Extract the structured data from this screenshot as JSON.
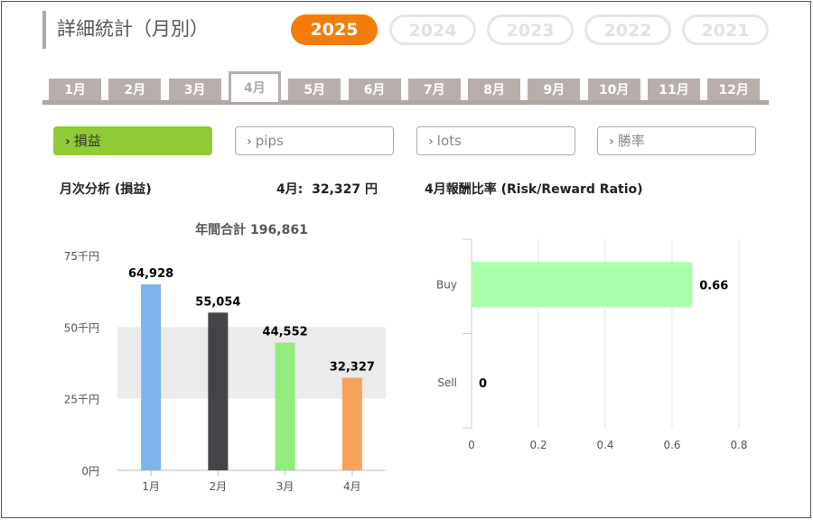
{
  "header": {
    "title": "詳細統計（月別）"
  },
  "years": [
    {
      "label": "2025",
      "active": true
    },
    {
      "label": "2024",
      "active": false
    },
    {
      "label": "2023",
      "active": false
    },
    {
      "label": "2022",
      "active": false
    },
    {
      "label": "2021",
      "active": false
    }
  ],
  "months": [
    {
      "label": "1月",
      "active": false
    },
    {
      "label": "2月",
      "active": false
    },
    {
      "label": "3月",
      "active": false
    },
    {
      "label": "4月",
      "active": true
    },
    {
      "label": "5月",
      "active": false
    },
    {
      "label": "6月",
      "active": false
    },
    {
      "label": "7月",
      "active": false
    },
    {
      "label": "8月",
      "active": false
    },
    {
      "label": "9月",
      "active": false
    },
    {
      "label": "10月",
      "active": false
    },
    {
      "label": "11月",
      "active": false
    },
    {
      "label": "12月",
      "active": false
    }
  ],
  "filters": [
    {
      "label": "損益",
      "active": true
    },
    {
      "label": "pips",
      "active": false
    },
    {
      "label": "lots",
      "active": false
    },
    {
      "label": "勝率",
      "active": false
    }
  ],
  "analysis": {
    "left_title": "月次分析 (損益)",
    "month_summary": "4月:  32,327 円",
    "right_title": "4月報酬比率 (Risk/Reward Ratio)"
  },
  "colors": {
    "accent": "#f47c0a",
    "filter_active": "#8fcb35",
    "tab": "#b8aeab"
  },
  "chart_data": [
    {
      "type": "bar",
      "title": "年間合計 196,861",
      "categories": [
        "1月",
        "2月",
        "3月",
        "4月"
      ],
      "values": [
        64928,
        55054,
        44552,
        32327
      ],
      "value_labels": [
        "64,928",
        "55,054",
        "44,552",
        "32,327"
      ],
      "colors": [
        "#7cb5ec",
        "#434348",
        "#90ed7d",
        "#f7a35c"
      ],
      "yticks": [
        0,
        25000,
        50000,
        75000
      ],
      "ytick_labels": [
        "0円",
        "25千円",
        "50千円",
        "75千円"
      ],
      "ylim": [
        0,
        75000
      ],
      "xlabel": "",
      "ylabel": ""
    },
    {
      "type": "bar",
      "orientation": "horizontal",
      "categories": [
        "Buy",
        "Sell"
      ],
      "values": [
        0.66,
        0
      ],
      "value_labels": [
        "0.66",
        "0"
      ],
      "color": "#aaffaa",
      "xticks": [
        0,
        0.2,
        0.4,
        0.6,
        0.8
      ],
      "xtick_labels": [
        "0",
        "0.2",
        "0.4",
        "0.6",
        "0.8"
      ],
      "xlim": [
        0,
        0.8
      ],
      "xlabel": "",
      "ylabel": ""
    }
  ]
}
